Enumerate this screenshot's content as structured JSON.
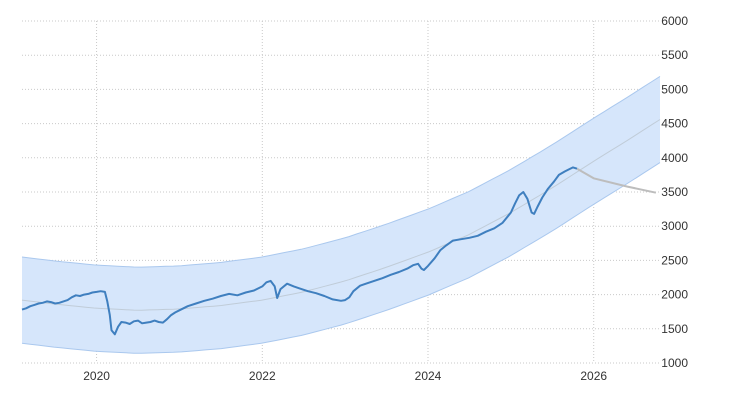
{
  "chart_data": {
    "type": "line",
    "title": "",
    "xlabel": "",
    "ylabel": "",
    "x_range": [
      2019.1,
      2026.8
    ],
    "ylim": [
      1000,
      6000
    ],
    "x_ticks": [
      {
        "value": 2020,
        "label": "2020"
      },
      {
        "value": 2022,
        "label": "2022"
      },
      {
        "value": 2024,
        "label": "2024"
      },
      {
        "value": 2026,
        "label": "2026"
      }
    ],
    "y_ticks": [
      1000,
      1500,
      2000,
      2500,
      3000,
      3500,
      4000,
      4500,
      5000,
      5500,
      6000
    ],
    "grid": true,
    "y_axis_position": "right",
    "colors": {
      "actual": "#3f7fbf",
      "forecast": "#bdbdbd",
      "channel_fill": "#d6e6fb",
      "channel_edge": "#aac8ee",
      "trend": "#c0ccd8"
    },
    "series": [
      {
        "role": "actual",
        "points": [
          [
            2019.1,
            1780
          ],
          [
            2019.15,
            1800
          ],
          [
            2019.2,
            1830
          ],
          [
            2019.25,
            1850
          ],
          [
            2019.3,
            1870
          ],
          [
            2019.35,
            1880
          ],
          [
            2019.4,
            1900
          ],
          [
            2019.45,
            1890
          ],
          [
            2019.5,
            1870
          ],
          [
            2019.55,
            1880
          ],
          [
            2019.6,
            1900
          ],
          [
            2019.65,
            1920
          ],
          [
            2019.7,
            1960
          ],
          [
            2019.75,
            1990
          ],
          [
            2019.8,
            1980
          ],
          [
            2019.85,
            2000
          ],
          [
            2019.9,
            2010
          ],
          [
            2019.95,
            2030
          ],
          [
            2020.0,
            2040
          ],
          [
            2020.05,
            2050
          ],
          [
            2020.1,
            2040
          ],
          [
            2020.13,
            1900
          ],
          [
            2020.16,
            1700
          ],
          [
            2020.18,
            1480
          ],
          [
            2020.22,
            1420
          ],
          [
            2020.26,
            1530
          ],
          [
            2020.3,
            1600
          ],
          [
            2020.35,
            1590
          ],
          [
            2020.4,
            1570
          ],
          [
            2020.45,
            1610
          ],
          [
            2020.5,
            1620
          ],
          [
            2020.55,
            1580
          ],
          [
            2020.6,
            1590
          ],
          [
            2020.65,
            1600
          ],
          [
            2020.7,
            1620
          ],
          [
            2020.75,
            1600
          ],
          [
            2020.8,
            1590
          ],
          [
            2020.85,
            1640
          ],
          [
            2020.9,
            1700
          ],
          [
            2020.95,
            1740
          ],
          [
            2021.0,
            1770
          ],
          [
            2021.1,
            1830
          ],
          [
            2021.2,
            1870
          ],
          [
            2021.3,
            1910
          ],
          [
            2021.4,
            1940
          ],
          [
            2021.5,
            1980
          ],
          [
            2021.6,
            2010
          ],
          [
            2021.7,
            1990
          ],
          [
            2021.8,
            2030
          ],
          [
            2021.9,
            2060
          ],
          [
            2022.0,
            2120
          ],
          [
            2022.05,
            2180
          ],
          [
            2022.1,
            2200
          ],
          [
            2022.15,
            2120
          ],
          [
            2022.18,
            1950
          ],
          [
            2022.22,
            2080
          ],
          [
            2022.3,
            2160
          ],
          [
            2022.38,
            2120
          ],
          [
            2022.45,
            2090
          ],
          [
            2022.55,
            2050
          ],
          [
            2022.65,
            2020
          ],
          [
            2022.75,
            1980
          ],
          [
            2022.85,
            1930
          ],
          [
            2022.95,
            1910
          ],
          [
            2023.0,
            1920
          ],
          [
            2023.05,
            1960
          ],
          [
            2023.1,
            2050
          ],
          [
            2023.18,
            2130
          ],
          [
            2023.25,
            2160
          ],
          [
            2023.35,
            2200
          ],
          [
            2023.45,
            2240
          ],
          [
            2023.55,
            2290
          ],
          [
            2023.65,
            2330
          ],
          [
            2023.75,
            2380
          ],
          [
            2023.82,
            2430
          ],
          [
            2023.88,
            2450
          ],
          [
            2023.92,
            2380
          ],
          [
            2023.95,
            2360
          ],
          [
            2024.0,
            2420
          ],
          [
            2024.08,
            2530
          ],
          [
            2024.15,
            2650
          ],
          [
            2024.22,
            2720
          ],
          [
            2024.3,
            2790
          ],
          [
            2024.4,
            2810
          ],
          [
            2024.5,
            2830
          ],
          [
            2024.6,
            2860
          ],
          [
            2024.7,
            2920
          ],
          [
            2024.8,
            2970
          ],
          [
            2024.9,
            3050
          ],
          [
            2025.0,
            3200
          ],
          [
            2025.05,
            3330
          ],
          [
            2025.1,
            3450
          ],
          [
            2025.15,
            3500
          ],
          [
            2025.2,
            3400
          ],
          [
            2025.25,
            3200
          ],
          [
            2025.28,
            3180
          ],
          [
            2025.32,
            3280
          ],
          [
            2025.38,
            3420
          ],
          [
            2025.45,
            3550
          ],
          [
            2025.52,
            3650
          ],
          [
            2025.58,
            3750
          ],
          [
            2025.65,
            3800
          ],
          [
            2025.7,
            3830
          ],
          [
            2025.75,
            3860
          ],
          [
            2025.8,
            3840
          ]
        ]
      },
      {
        "role": "forecast",
        "points": [
          [
            2025.8,
            3840
          ],
          [
            2026.0,
            3700
          ],
          [
            2026.4,
            3580
          ],
          [
            2026.75,
            3490
          ]
        ]
      }
    ],
    "trend_center": [
      [
        2019.1,
        1920
      ],
      [
        2019.5,
        1860
      ],
      [
        2020.0,
        1800
      ],
      [
        2020.5,
        1770
      ],
      [
        2021.0,
        1790
      ],
      [
        2021.5,
        1840
      ],
      [
        2022.0,
        1920
      ],
      [
        2022.5,
        2040
      ],
      [
        2023.0,
        2200
      ],
      [
        2023.5,
        2400
      ],
      [
        2024.0,
        2620
      ],
      [
        2024.5,
        2880
      ],
      [
        2025.0,
        3200
      ],
      [
        2025.5,
        3560
      ],
      [
        2026.0,
        3950
      ],
      [
        2026.4,
        4250
      ],
      [
        2026.8,
        4560
      ]
    ],
    "channel_half_width": [
      [
        2019.1,
        630
      ],
      [
        2020.0,
        630
      ],
      [
        2021.0,
        630
      ],
      [
        2022.0,
        630
      ],
      [
        2023.0,
        630
      ],
      [
        2024.0,
        630
      ],
      [
        2025.0,
        630
      ],
      [
        2026.0,
        630
      ],
      [
        2026.8,
        630
      ]
    ]
  }
}
